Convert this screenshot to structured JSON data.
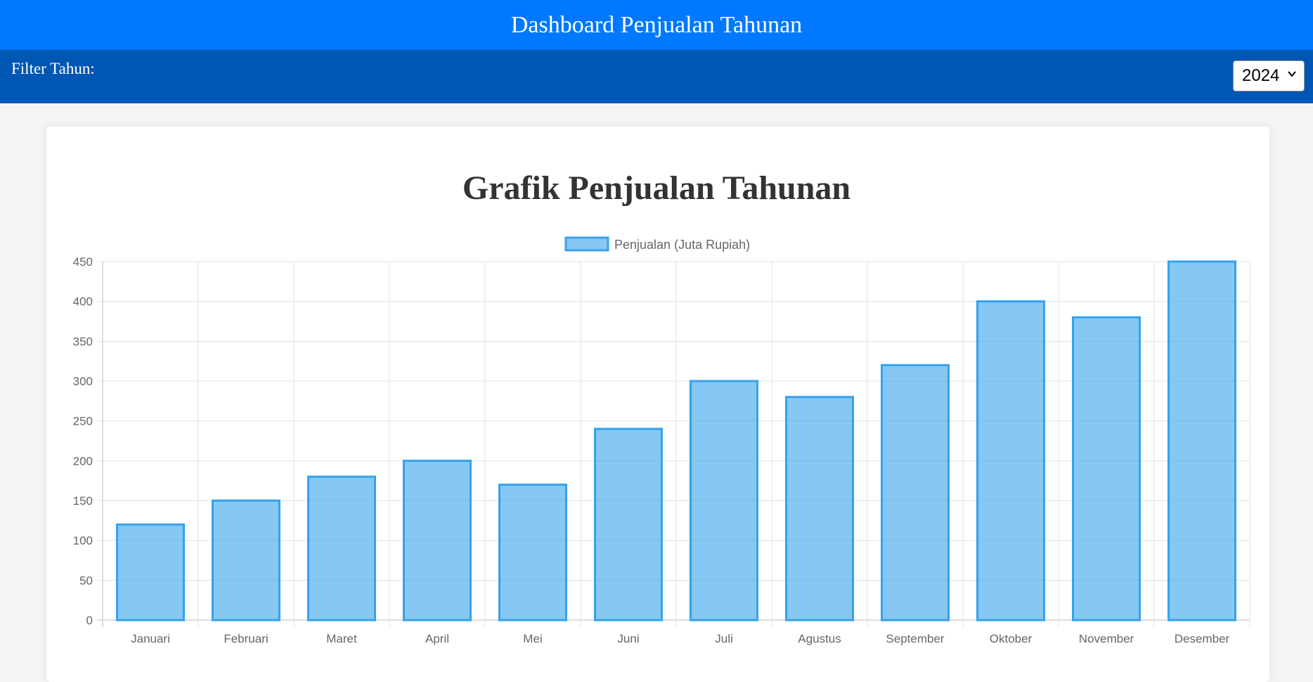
{
  "header": {
    "title": "Dashboard Penjualan Tahunan"
  },
  "filter": {
    "label": "Filter Tahun:",
    "selected": "2024"
  },
  "colors": {
    "bar_fill": "rgba(54,162,235,0.6)",
    "bar_stroke": "#36a2eb",
    "header": "#0078ff",
    "filterbar": "#0056b3"
  },
  "chart_data": {
    "type": "bar",
    "title": "Grafik Penjualan Tahunan",
    "categories": [
      "Januari",
      "Februari",
      "Maret",
      "April",
      "Mei",
      "Juni",
      "Juli",
      "Agustus",
      "September",
      "Oktober",
      "November",
      "Desember"
    ],
    "series": [
      {
        "name": "Penjualan (Juta Rupiah)",
        "values": [
          120,
          150,
          180,
          200,
          170,
          240,
          300,
          280,
          320,
          400,
          380,
          450
        ]
      }
    ],
    "ylim": [
      0,
      450
    ],
    "yticks": [
      0,
      50,
      100,
      150,
      200,
      250,
      300,
      350,
      400,
      450
    ],
    "grid": true,
    "legend": "top"
  }
}
